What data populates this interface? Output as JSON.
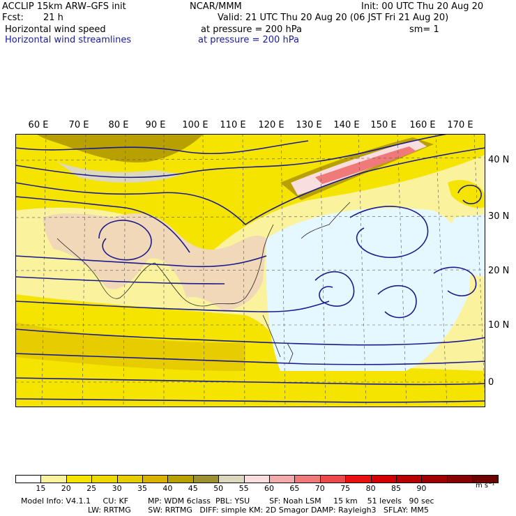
{
  "header": {
    "model": "ACCLIP 15km ARW–GFS init",
    "org": "NCAR/MMM",
    "init": "Init: 00 UTC Thu 20 Aug 20",
    "fcst_label": "Fcst:",
    "fcst_value": "21 h",
    "valid": "Valid: 21 UTC Thu 20 Aug 20 (06 JST Fri 21 Aug 20)",
    "field1": "Horizontal wind speed",
    "field1_level": "at pressure =  200 hPa",
    "smoothing": "sm= 1",
    "field2": "Horizontal wind streamlines",
    "field2_level": "at pressure =  200 hPa"
  },
  "map": {
    "lon_labels": [
      "60 E",
      "70 E",
      "80 E",
      "90 E",
      "100 E",
      "110 E",
      "120 E",
      "130 E",
      "140 E",
      "150 E",
      "160 E",
      "170 E"
    ],
    "lat_labels": [
      "40 N",
      "30 N",
      "20 N",
      "10 N",
      "0"
    ],
    "colors": {
      "ocean": "#e6f8ff",
      "land": "#f0d8b8",
      "wind_15": "#fbf29e",
      "wind_20": "#f4e400",
      "wind_25": "#e6cc00",
      "wind_30": "#d9b200",
      "wind_35": "#b8a000",
      "wind_40": "#9b9130",
      "wind_45": "#dcd8c0",
      "wind_50": "#f8dede",
      "wind_55": "#f4aaaa",
      "wind_60": "#f07a7a",
      "streamline": "#1a1a8c",
      "grid": "#555555"
    }
  },
  "colorbar": {
    "labels": [
      "15",
      "20",
      "25",
      "30",
      "35",
      "40",
      "45",
      "50",
      "55",
      "60",
      "65",
      "70",
      "75",
      "80",
      "85",
      "90"
    ],
    "unit": "m s⁻¹",
    "colors": [
      "#ffffff",
      "#fbf29e",
      "#f4e400",
      "#eed800",
      "#e6cc00",
      "#d9b200",
      "#b8a000",
      "#9b9130",
      "#dcd8c0",
      "#f8dede",
      "#f4aaaa",
      "#f07a7a",
      "#ec4a4a",
      "#e81010",
      "#d40000",
      "#b80000",
      "#a00000",
      "#880000",
      "#6e0000"
    ]
  },
  "footer": {
    "line1": "Model Info: V4.1.1     CU: KF        MP: WDM 6class  PBL: YSU        SF: Noah LSM     15 km    51 levels   90 sec",
    "line2": "LW: RRTMG       SW: RRTMG   DIFF: simple KM: 2D Smagor DAMP: Rayleigh3   SFLAY: MM5"
  }
}
